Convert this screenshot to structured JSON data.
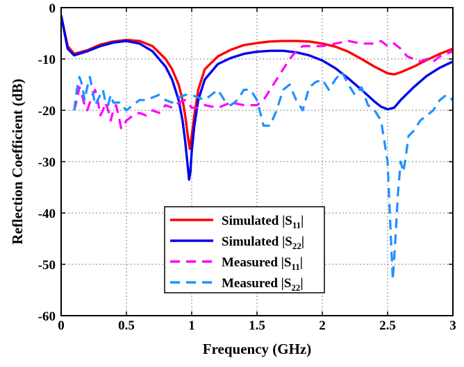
{
  "chart_data": {
    "type": "line",
    "xlabel": "Frequency (GHz)",
    "ylabel": "Reflection Coefficient (dB)",
    "xlim": [
      0,
      3
    ],
    "ylim": [
      -60,
      0
    ],
    "xticks": [
      0,
      0.5,
      1,
      1.5,
      2,
      2.5,
      3
    ],
    "xtick_labels": [
      "0",
      "0.5",
      "1",
      "1.5",
      "2",
      "2.5",
      "3"
    ],
    "yticks": [
      0,
      -10,
      -20,
      -30,
      -40,
      -50,
      -60
    ],
    "ytick_labels": [
      "0",
      "-10",
      "-20",
      "-30",
      "-40",
      "-50",
      "-60"
    ],
    "grid": true,
    "legend_position": "bottom-center",
    "series": [
      {
        "name": "Simulated |S11|",
        "legend_main": "Simulated  |S",
        "legend_sub": "11",
        "legend_end": "|",
        "color": "#ff0000",
        "style": "solid",
        "x": [
          0,
          0.05,
          0.1,
          0.2,
          0.3,
          0.4,
          0.5,
          0.6,
          0.7,
          0.8,
          0.85,
          0.9,
          0.93,
          0.95,
          0.97,
          0.985,
          1.0,
          1.02,
          1.05,
          1.1,
          1.2,
          1.3,
          1.4,
          1.5,
          1.6,
          1.7,
          1.8,
          1.9,
          2.0,
          2.1,
          2.2,
          2.3,
          2.4,
          2.5,
          2.55,
          2.6,
          2.7,
          2.8,
          2.9,
          3.0
        ],
        "y": [
          -1.5,
          -7.5,
          -9,
          -8.3,
          -7.2,
          -6.6,
          -6.3,
          -6.5,
          -7.5,
          -10,
          -12,
          -15,
          -18,
          -21,
          -25,
          -27.5,
          -25,
          -21,
          -16,
          -12,
          -9.5,
          -8.2,
          -7.3,
          -6.9,
          -6.6,
          -6.5,
          -6.5,
          -6.6,
          -7,
          -7.6,
          -8.6,
          -10,
          -11.5,
          -12.8,
          -13,
          -12.6,
          -11.5,
          -10.2,
          -9,
          -8
        ]
      },
      {
        "name": "Simulated |S22|",
        "legend_main": "Simulated  |S",
        "legend_sub": "22",
        "legend_end": "|",
        "color": "#0000ee",
        "style": "solid",
        "x": [
          0,
          0.05,
          0.1,
          0.2,
          0.3,
          0.4,
          0.5,
          0.6,
          0.7,
          0.8,
          0.85,
          0.9,
          0.93,
          0.95,
          0.97,
          0.98,
          0.99,
          1.0,
          1.02,
          1.05,
          1.1,
          1.2,
          1.3,
          1.4,
          1.5,
          1.6,
          1.7,
          1.8,
          1.9,
          2.0,
          2.1,
          2.2,
          2.3,
          2.4,
          2.45,
          2.5,
          2.55,
          2.6,
          2.7,
          2.8,
          2.9,
          3.0
        ],
        "y": [
          -1.5,
          -8,
          -9.3,
          -8.5,
          -7.5,
          -6.8,
          -6.5,
          -7,
          -8.5,
          -11.5,
          -14,
          -18,
          -22,
          -26,
          -31,
          -33.5,
          -32,
          -28,
          -23,
          -18,
          -14,
          -11,
          -9.8,
          -9,
          -8.6,
          -8.4,
          -8.4,
          -8.7,
          -9.3,
          -10.3,
          -11.8,
          -13.8,
          -16,
          -18.3,
          -19.3,
          -19.8,
          -19.5,
          -18,
          -15.5,
          -13.3,
          -11.7,
          -10.5
        ]
      },
      {
        "name": "Measured |S11|",
        "legend_main": "Measured  |S",
        "legend_sub": "11",
        "legend_end": "|",
        "color": "#ff00ff",
        "style": "dashed",
        "x": [
          0.1,
          0.12,
          0.14,
          0.16,
          0.18,
          0.2,
          0.22,
          0.24,
          0.26,
          0.28,
          0.3,
          0.32,
          0.34,
          0.36,
          0.38,
          0.4,
          0.42,
          0.44,
          0.46,
          0.5,
          0.55,
          0.6,
          0.65,
          0.7,
          0.75,
          0.8,
          0.85,
          0.9,
          0.95,
          1.0,
          1.05,
          1.1,
          1.2,
          1.3,
          1.4,
          1.5,
          1.55,
          1.6,
          1.65,
          1.7,
          1.75,
          1.8,
          1.85,
          1.9,
          2.0,
          2.1,
          2.2,
          2.3,
          2.4,
          2.45,
          2.5,
          2.55,
          2.6,
          2.65,
          2.7,
          2.75,
          2.8,
          2.85,
          2.9,
          2.95,
          3.0
        ],
        "y": [
          -20,
          -18,
          -15.5,
          -17,
          -19,
          -20,
          -18.5,
          -17,
          -16,
          -18,
          -21,
          -20,
          -18.5,
          -20,
          -22,
          -20,
          -19,
          -21,
          -23.5,
          -22,
          -21,
          -20.5,
          -21,
          -20,
          -20.5,
          -19,
          -19.5,
          -18.5,
          -18,
          -19.5,
          -19.5,
          -19,
          -19.5,
          -18.5,
          -19,
          -19,
          -18,
          -16,
          -14,
          -12,
          -10,
          -8.5,
          -7.5,
          -7.5,
          -7.5,
          -7,
          -6.5,
          -7,
          -7,
          -6.5,
          -7.5,
          -7,
          -8,
          -9.5,
          -10,
          -10.5,
          -10,
          -10.5,
          -9.5,
          -9,
          -8.5
        ]
      },
      {
        "name": "Measured |S22|",
        "legend_main": "Measured  |S",
        "legend_sub": "22",
        "legend_end": "|",
        "color": "#1e90ff",
        "style": "dashed",
        "x": [
          0.1,
          0.12,
          0.14,
          0.16,
          0.18,
          0.2,
          0.22,
          0.24,
          0.26,
          0.28,
          0.3,
          0.32,
          0.34,
          0.36,
          0.38,
          0.4,
          0.45,
          0.5,
          0.55,
          0.6,
          0.65,
          0.7,
          0.75,
          0.8,
          0.85,
          0.9,
          0.95,
          1.0,
          1.05,
          1.1,
          1.15,
          1.2,
          1.25,
          1.3,
          1.35,
          1.4,
          1.45,
          1.5,
          1.55,
          1.6,
          1.65,
          1.7,
          1.75,
          1.8,
          1.85,
          1.9,
          1.95,
          2.0,
          2.05,
          2.1,
          2.15,
          2.2,
          2.25,
          2.3,
          2.35,
          2.4,
          2.45,
          2.5,
          2.52,
          2.54,
          2.56,
          2.58,
          2.6,
          2.62,
          2.64,
          2.66,
          2.7,
          2.75,
          2.8,
          2.85,
          2.9,
          2.95,
          3.0
        ],
        "y": [
          -20,
          -16,
          -13.5,
          -15,
          -18,
          -15.5,
          -13.5,
          -16,
          -19,
          -18,
          -17,
          -16,
          -18.5,
          -19,
          -17,
          -18.5,
          -18.5,
          -20,
          -19,
          -18,
          -18,
          -17.5,
          -17,
          -18,
          -18.5,
          -17.5,
          -17,
          -17,
          -17.5,
          -18,
          -17,
          -16,
          -18,
          -19,
          -18,
          -16,
          -16,
          -18,
          -23,
          -23,
          -20,
          -16,
          -15,
          -18,
          -20,
          -15.5,
          -14.5,
          -14,
          -16,
          -14,
          -12.5,
          -15,
          -17,
          -15.5,
          -19,
          -20,
          -22,
          -30,
          -42,
          -53,
          -45,
          -36,
          -30,
          -32,
          -29,
          -25,
          -24,
          -22,
          -21,
          -20,
          -18,
          -17,
          -18
        ]
      }
    ]
  }
}
